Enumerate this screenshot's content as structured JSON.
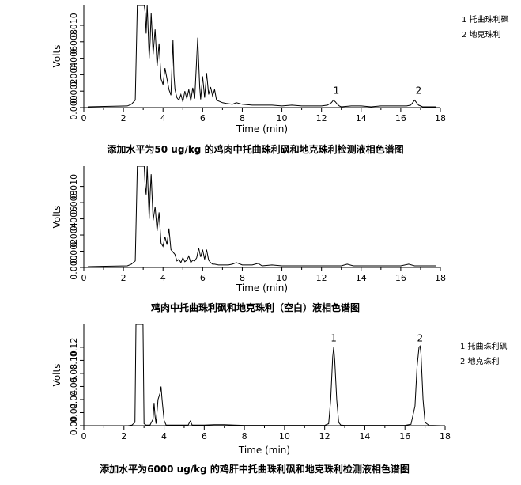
{
  "chart_data": [
    {
      "type": "line",
      "caption": "添加水平为50 ug/kg 的鸡肉中托曲珠利砜和地克珠利检测液相色谱图",
      "xlabel": "Time (min)",
      "ylabel": "Volts",
      "xlim": [
        0,
        18
      ],
      "xticks": [
        "0",
        "2",
        "4",
        "6",
        "8",
        "10",
        "12",
        "14",
        "16",
        "18"
      ],
      "ylim": [
        0,
        0.0125
      ],
      "yticks": [
        {
          "v": 0.0,
          "label": "0.000"
        },
        {
          "v": 0.002,
          "label": "0.002"
        },
        {
          "v": 0.004,
          "label": "0.004"
        },
        {
          "v": 0.006,
          "label": "0.006"
        },
        {
          "v": 0.008,
          "label": "0.008"
        },
        {
          "v": 0.01,
          "label": "0.010"
        }
      ],
      "legend": [
        "1 托曲珠利砜",
        "2 地克珠利"
      ],
      "peak_labels": [
        {
          "label": "1",
          "x": 12.75,
          "y": 0.0017
        },
        {
          "label": "2",
          "x": 16.9,
          "y": 0.0017
        }
      ],
      "x": [
        0.2,
        2.2,
        2.4,
        2.6,
        2.7,
        2.8,
        2.9,
        3.05,
        3.1,
        3.15,
        3.2,
        3.3,
        3.35,
        3.4,
        3.5,
        3.6,
        3.7,
        3.8,
        3.9,
        4.0,
        4.1,
        4.2,
        4.3,
        4.4,
        4.5,
        4.55,
        4.6,
        4.7,
        4.8,
        4.9,
        5.0,
        5.1,
        5.2,
        5.3,
        5.4,
        5.5,
        5.6,
        5.7,
        5.75,
        5.8,
        5.85,
        5.9,
        6.0,
        6.1,
        6.2,
        6.3,
        6.4,
        6.5,
        6.6,
        6.7,
        6.8,
        7.0,
        7.2,
        7.5,
        7.7,
        8.0,
        8.5,
        9.0,
        9.5,
        10.0,
        10.5,
        11.0,
        11.5,
        12.0,
        12.3,
        12.5,
        12.6,
        12.7,
        12.8,
        12.9,
        13.0,
        13.5,
        14.0,
        14.5,
        15.0,
        15.5,
        16.0,
        16.3,
        16.5,
        16.6,
        16.7,
        16.8,
        16.9,
        17.0,
        17.1,
        17.2,
        17.5,
        17.8
      ],
      "y": [
        0.0001,
        0.0002,
        0.0004,
        0.0009,
        0.0125,
        0.0125,
        0.0125,
        0.0125,
        0.0115,
        0.009,
        0.0125,
        0.006,
        0.008,
        0.0115,
        0.0065,
        0.0095,
        0.005,
        0.0078,
        0.0035,
        0.0028,
        0.0048,
        0.0035,
        0.0022,
        0.0015,
        0.0082,
        0.004,
        0.0022,
        0.0012,
        0.0009,
        0.0016,
        0.0007,
        0.002,
        0.0011,
        0.0022,
        0.0008,
        0.0024,
        0.0011,
        0.006,
        0.0085,
        0.0055,
        0.0025,
        0.001,
        0.0038,
        0.0012,
        0.0042,
        0.0016,
        0.0025,
        0.0014,
        0.0022,
        0.0009,
        0.0008,
        0.0006,
        0.0005,
        0.0004,
        0.0006,
        0.0004,
        0.0003,
        0.0003,
        0.0003,
        0.0002,
        0.0003,
        0.0002,
        0.0002,
        0.0002,
        0.0003,
        0.0006,
        0.0009,
        0.0007,
        0.0004,
        0.0002,
        0.0001,
        0.0002,
        0.0002,
        0.0001,
        0.0002,
        0.0002,
        0.0002,
        0.0002,
        0.0003,
        0.0006,
        0.0009,
        0.0006,
        0.0003,
        0.0002,
        0.0001,
        0.0001,
        0.0001,
        0.0001
      ]
    },
    {
      "type": "line",
      "caption": "鸡肉中托曲珠利砜和地克珠利（空白）液相色谱图",
      "xlabel": "Time (min)",
      "ylabel": "Volts",
      "xlim": [
        0,
        18
      ],
      "xticks": [
        "0",
        "2",
        "4",
        "6",
        "8",
        "10",
        "12",
        "14",
        "16",
        "18"
      ],
      "ylim": [
        0,
        0.0125
      ],
      "yticks": [
        {
          "v": 0.0,
          "label": "0.000"
        },
        {
          "v": 0.002,
          "label": "0.002"
        },
        {
          "v": 0.004,
          "label": "0.004"
        },
        {
          "v": 0.006,
          "label": "0.006"
        },
        {
          "v": 0.008,
          "label": "0.008"
        },
        {
          "v": 0.01,
          "label": "0.010"
        }
      ],
      "legend": [],
      "peak_labels": [],
      "x": [
        0.2,
        2.2,
        2.4,
        2.6,
        2.7,
        2.8,
        2.9,
        3.05,
        3.1,
        3.15,
        3.2,
        3.3,
        3.35,
        3.4,
        3.5,
        3.6,
        3.7,
        3.8,
        3.9,
        4.0,
        4.1,
        4.2,
        4.3,
        4.4,
        4.5,
        4.6,
        4.7,
        4.8,
        4.9,
        5.0,
        5.1,
        5.2,
        5.3,
        5.4,
        5.5,
        5.6,
        5.7,
        5.8,
        5.9,
        6.0,
        6.1,
        6.2,
        6.3,
        6.4,
        6.5,
        6.6,
        6.8,
        7.0,
        7.3,
        7.5,
        7.7,
        8.0,
        8.5,
        8.8,
        9.0,
        9.5,
        10.0,
        11.0,
        12.0,
        13.0,
        13.3,
        13.6,
        14.0,
        15.0,
        16.0,
        16.4,
        16.7,
        17.0,
        17.8
      ],
      "y": [
        0.0001,
        0.0002,
        0.0004,
        0.0008,
        0.0125,
        0.0125,
        0.0125,
        0.0125,
        0.01,
        0.009,
        0.0125,
        0.006,
        0.009,
        0.0115,
        0.0058,
        0.0075,
        0.0045,
        0.0068,
        0.003,
        0.0026,
        0.0038,
        0.0028,
        0.0048,
        0.0022,
        0.0019,
        0.0016,
        0.0008,
        0.001,
        0.0006,
        0.0012,
        0.0007,
        0.0009,
        0.0014,
        0.0006,
        0.0009,
        0.0008,
        0.0012,
        0.0024,
        0.0013,
        0.0022,
        0.001,
        0.0022,
        0.0009,
        0.0006,
        0.0004,
        0.0004,
        0.0003,
        0.0003,
        0.0003,
        0.0004,
        0.0006,
        0.0003,
        0.0003,
        0.0005,
        0.0002,
        0.0003,
        0.0002,
        0.0002,
        0.0002,
        0.0002,
        0.0004,
        0.0002,
        0.0002,
        0.0002,
        0.0002,
        0.0004,
        0.0002,
        0.0002,
        0.0002
      ]
    },
    {
      "type": "line",
      "caption": "添加水平为6000 ug/kg 的鸡肝中托曲珠利砜和地克珠利检测液相色谱图",
      "xlabel": "Time (min)",
      "ylabel": "Volts",
      "xlim": [
        0,
        18
      ],
      "xticks": [
        "0",
        "2",
        "4",
        "6",
        "8",
        "10",
        "12",
        "14",
        "16",
        "18"
      ],
      "ylim": [
        0,
        0.155
      ],
      "yticks": [
        {
          "v": 0.0,
          "label": "0.00"
        },
        {
          "v": 0.02,
          "label": "0.02"
        },
        {
          "v": 0.04,
          "label": "0.04"
        },
        {
          "v": 0.06,
          "label": "0.06"
        },
        {
          "v": 0.08,
          "label": "0.08"
        },
        {
          "v": 0.1,
          "label": "0.10"
        },
        {
          "v": 0.12,
          "label": "0.12"
        }
      ],
      "legend": [
        "1 托曲珠利砜",
        "2 地克珠利"
      ],
      "peak_labels": [
        {
          "label": "1",
          "x": 12.45,
          "y": 0.129
        },
        {
          "label": "2",
          "x": 16.75,
          "y": 0.129
        }
      ],
      "x": [
        0.2,
        2.2,
        2.4,
        2.55,
        2.6,
        2.65,
        2.9,
        2.95,
        3.0,
        3.1,
        3.3,
        3.45,
        3.5,
        3.55,
        3.6,
        3.7,
        3.8,
        3.85,
        3.9,
        4.0,
        4.1,
        5.2,
        5.3,
        5.4,
        6.0,
        6.5,
        7.0,
        7.5,
        8.0,
        10.0,
        12.0,
        12.2,
        12.3,
        12.4,
        12.45,
        12.5,
        12.6,
        12.7,
        12.8,
        13.0,
        14.0,
        15.0,
        16.0,
        16.3,
        16.5,
        16.6,
        16.7,
        16.75,
        16.8,
        16.9,
        17.0,
        17.2,
        17.8
      ],
      "y": [
        0.0,
        0.0,
        0.001,
        0.005,
        0.155,
        0.155,
        0.155,
        0.155,
        0.003,
        0.001,
        0.001,
        0.01,
        0.035,
        0.015,
        0.003,
        0.04,
        0.05,
        0.06,
        0.04,
        0.008,
        0.001,
        0.001,
        0.007,
        0.001,
        0.001,
        0.0015,
        0.0015,
        0.001,
        0.0005,
        0.0005,
        0.0005,
        0.003,
        0.04,
        0.105,
        0.12,
        0.1,
        0.04,
        0.005,
        0.001,
        0.0005,
        0.0005,
        0.0005,
        0.0005,
        0.002,
        0.03,
        0.09,
        0.12,
        0.122,
        0.11,
        0.04,
        0.005,
        0.0005,
        0.0
      ]
    }
  ]
}
